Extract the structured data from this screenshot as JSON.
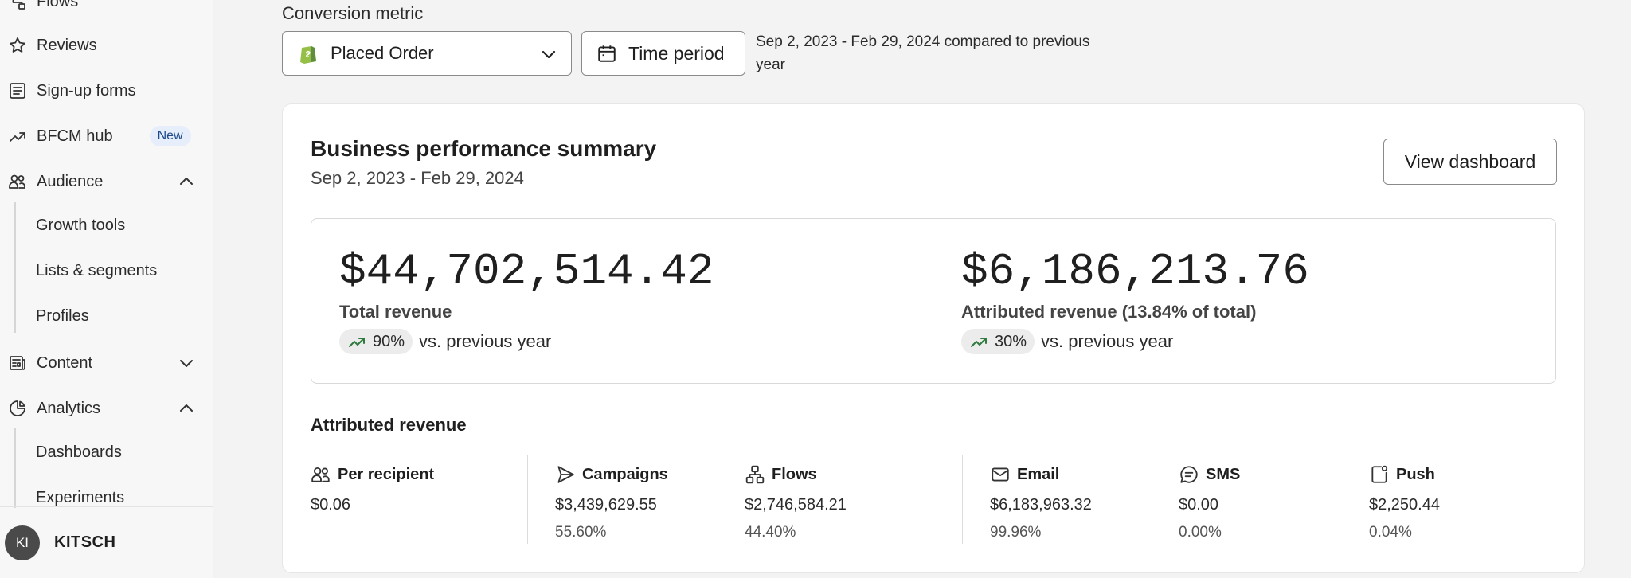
{
  "sidebar": {
    "items": [
      {
        "label": "Flows",
        "icon": "flows-icon"
      },
      {
        "label": "Reviews",
        "icon": "star-icon"
      },
      {
        "label": "Sign-up forms",
        "icon": "form-icon"
      },
      {
        "label": "BFCM hub",
        "icon": "trend-icon",
        "badge": "New"
      },
      {
        "label": "Audience",
        "icon": "audience-icon",
        "expanded": true
      },
      {
        "label": "Content",
        "icon": "content-icon",
        "expanded": false
      },
      {
        "label": "Analytics",
        "icon": "analytics-icon",
        "expanded": true
      }
    ],
    "audience_sub": [
      "Growth tools",
      "Lists & segments",
      "Profiles"
    ],
    "analytics_sub": [
      "Dashboards",
      "Experiments"
    ],
    "account": {
      "initials": "KI",
      "name": "KITSCH"
    }
  },
  "controls": {
    "conversion_label": "Conversion metric",
    "metric_value": "Placed Order",
    "time_period_label": "Time period",
    "period_text": "Sep 2, 2023 - Feb 29, 2024 compared to previous year"
  },
  "summary": {
    "title": "Business performance summary",
    "date_range": "Sep 2, 2023 - Feb 29, 2024",
    "view_button": "View dashboard",
    "total": {
      "value": "$44,702,514.42",
      "label": "Total revenue",
      "change": "90%",
      "compare": "vs. previous year"
    },
    "attributed": {
      "value": "$6,186,213.76",
      "label": "Attributed revenue (13.84% of total)",
      "change": "30%",
      "compare": "vs. previous year"
    }
  },
  "attributed_revenue": {
    "title": "Attributed revenue",
    "columns": [
      {
        "label": "Per recipient",
        "icon": "people-icon",
        "value": "$0.06",
        "pct": ""
      },
      {
        "label": "Campaigns",
        "icon": "send-icon",
        "value": "$3,439,629.55",
        "pct": "55.60%"
      },
      {
        "label": "Flows",
        "icon": "flows-icon",
        "value": "$2,746,584.21",
        "pct": "44.40%"
      },
      {
        "label": "Email",
        "icon": "mail-icon",
        "value": "$6,183,963.32",
        "pct": "99.96%"
      },
      {
        "label": "SMS",
        "icon": "sms-icon",
        "value": "$0.00",
        "pct": "0.00%"
      },
      {
        "label": "Push",
        "icon": "push-icon",
        "value": "$2,250.44",
        "pct": "0.04%"
      }
    ]
  },
  "colors": {
    "trend_up": "#2f7a3e",
    "badge_bg": "#e6eefb",
    "badge_text": "#1e4a8a"
  }
}
